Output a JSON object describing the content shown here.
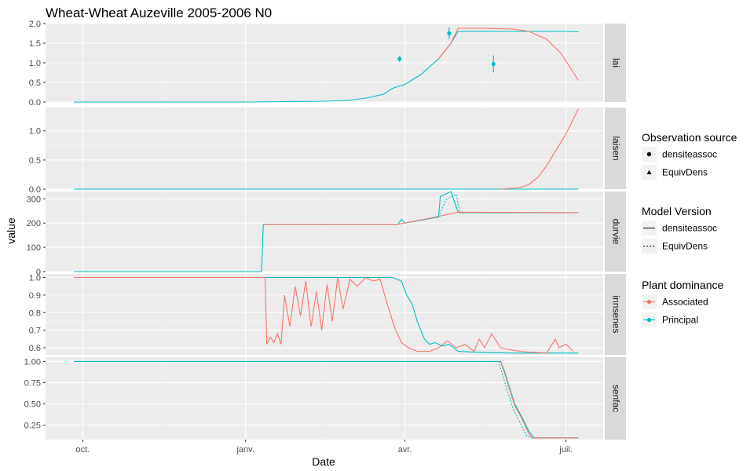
{
  "chart_data": {
    "type": "line",
    "title": "Wheat-Wheat Auzeville 2005-2006 N0",
    "xlabel": "Date",
    "ylabel": "value",
    "x_ticks": [
      "oct.",
      "janv.",
      "avr.",
      "juil."
    ],
    "grid": true,
    "legend_position": "right",
    "facets": [
      {
        "name": "lai",
        "ylim": [
          0,
          2.0
        ],
        "y_ticks": [
          0,
          0.5,
          1,
          1.5,
          2
        ],
        "y_tick_labels": [
          "0.0",
          "0.5",
          "1.0",
          "1.5",
          "2.0"
        ],
        "series": [
          {
            "name": "Principal",
            "version": "densiteassoc",
            "x": [
              "2005-09-26",
              "2006-01-01",
              "2006-02-15",
              "2006-03-01",
              "2006-03-10",
              "2006-03-20",
              "2006-03-25",
              "2006-04-01",
              "2006-04-10",
              "2006-04-20",
              "2006-04-27",
              "2006-05-01",
              "2006-05-15",
              "2006-06-01",
              "2006-06-15",
              "2006-07-01",
              "2006-07-08"
            ],
            "y": [
              0.0,
              0.0,
              0.02,
              0.05,
              0.1,
              0.2,
              0.35,
              0.45,
              0.7,
              1.1,
              1.5,
              1.8,
              1.8,
              1.8,
              1.8,
              1.8,
              1.79
            ]
          },
          {
            "name": "Associated",
            "version": "densiteassoc",
            "x": [
              "2006-04-20",
              "2006-04-27",
              "2006-05-01",
              "2006-05-15",
              "2006-06-01",
              "2006-06-10",
              "2006-06-20",
              "2006-06-28",
              "2006-07-03",
              "2006-07-08"
            ],
            "y": [
              1.1,
              1.5,
              1.88,
              1.88,
              1.86,
              1.8,
              1.6,
              1.25,
              0.9,
              0.55
            ]
          }
        ],
        "points": [
          {
            "name": "Principal",
            "source": "densiteassoc",
            "x": [
              "2006-03-29",
              "2006-04-26",
              "2006-05-21"
            ],
            "y": [
              1.1,
              1.75,
              0.97
            ],
            "err": [
              0.08,
              0.15,
              0.22
            ]
          }
        ]
      },
      {
        "name": "laisen",
        "ylim": [
          0,
          1.4
        ],
        "y_ticks": [
          0,
          0.5,
          1
        ],
        "y_tick_labels": [
          "0.0",
          "0.5",
          "1.0"
        ],
        "series": [
          {
            "name": "Principal",
            "version": "densiteassoc",
            "x": [
              "2005-09-26",
              "2006-07-08"
            ],
            "y": [
              0.0,
              0.0
            ]
          },
          {
            "name": "Associated",
            "version": "densiteassoc",
            "x": [
              "2006-05-25",
              "2006-06-05",
              "2006-06-10",
              "2006-06-15",
              "2006-06-20",
              "2006-06-25",
              "2006-07-01",
              "2006-07-08"
            ],
            "y": [
              0.0,
              0.03,
              0.08,
              0.2,
              0.4,
              0.65,
              0.95,
              1.38
            ]
          }
        ]
      },
      {
        "name": "durvie",
        "ylim": [
          0,
          330
        ],
        "y_ticks": [
          0,
          100,
          200,
          300
        ],
        "y_tick_labels": [
          "0",
          "100",
          "200",
          "300"
        ],
        "series": [
          {
            "name": "Principal",
            "version": "densiteassoc",
            "x": [
              "2005-09-26",
              "2006-01-10",
              "2006-01-11",
              "2006-03-28",
              "2006-03-30",
              "2006-04-01",
              "2006-04-20",
              "2006-04-21",
              "2006-04-27",
              "2006-05-01",
              "2006-05-02",
              "2006-07-08"
            ],
            "y": [
              0,
              0,
              195,
              195,
              215,
              200,
              225,
              310,
              330,
              245,
              243,
              243
            ]
          },
          {
            "name": "Associated",
            "version": "densiteassoc",
            "x": [
              "2006-01-11",
              "2006-03-28",
              "2006-04-15",
              "2006-05-01",
              "2006-07-08"
            ],
            "y": [
              195,
              195,
              220,
              245,
              243
            ]
          },
          {
            "name": "Principal",
            "version": "EquivDens",
            "x": [
              "2006-04-20",
              "2006-04-24",
              "2006-04-30",
              "2006-05-02"
            ],
            "y": [
              225,
              295,
              320,
              245
            ]
          }
        ]
      },
      {
        "name": "innsenes",
        "ylim": [
          0.56,
          1.02
        ],
        "y_ticks": [
          0.6,
          0.7,
          0.8,
          0.9,
          1.0
        ],
        "y_tick_labels": [
          "0.6",
          "0.7",
          "0.8",
          "0.9",
          "1.0"
        ],
        "series": [
          {
            "name": "Principal",
            "version": "densiteassoc",
            "x": [
              "2005-09-26",
              "2006-03-25",
              "2006-03-30",
              "2006-04-02",
              "2006-04-05",
              "2006-04-08",
              "2006-04-10",
              "2006-04-12",
              "2006-04-15",
              "2006-04-18",
              "2006-04-22",
              "2006-04-26",
              "2006-05-01",
              "2006-05-10",
              "2006-06-01",
              "2006-07-08"
            ],
            "y": [
              1.0,
              1.0,
              0.98,
              0.9,
              0.85,
              0.75,
              0.7,
              0.65,
              0.62,
              0.63,
              0.61,
              0.62,
              0.58,
              0.575,
              0.57,
              0.57
            ]
          },
          {
            "name": "Associated",
            "version": "densiteassoc",
            "x": [
              "2005-09-26",
              "2006-01-12",
              "2006-01-13",
              "2006-01-15",
              "2006-01-17",
              "2006-01-19",
              "2006-01-21",
              "2006-01-23",
              "2006-01-26",
              "2006-01-29",
              "2006-02-01",
              "2006-02-04",
              "2006-02-07",
              "2006-02-10",
              "2006-02-13",
              "2006-02-16",
              "2006-02-19",
              "2006-02-22",
              "2006-02-25",
              "2006-03-01",
              "2006-03-05",
              "2006-03-10",
              "2006-03-14",
              "2006-03-18",
              "2006-03-22",
              "2006-03-26",
              "2006-03-30",
              "2006-04-03",
              "2006-04-08",
              "2006-04-15",
              "2006-04-20",
              "2006-04-25",
              "2006-04-30",
              "2006-05-05",
              "2006-05-10",
              "2006-05-13",
              "2006-05-16",
              "2006-05-20",
              "2006-05-25",
              "2006-05-30",
              "2006-06-05",
              "2006-06-10",
              "2006-06-20",
              "2006-06-25",
              "2006-06-27",
              "2006-07-01",
              "2006-07-05"
            ],
            "y": [
              1.0,
              1.0,
              0.62,
              0.66,
              0.63,
              0.68,
              0.62,
              0.9,
              0.72,
              0.95,
              0.78,
              0.98,
              0.72,
              0.92,
              0.7,
              0.96,
              0.75,
              1.0,
              0.82,
              0.99,
              0.95,
              1.0,
              0.98,
              0.99,
              0.85,
              0.72,
              0.63,
              0.6,
              0.58,
              0.58,
              0.6,
              0.64,
              0.6,
              0.62,
              0.58,
              0.65,
              0.6,
              0.68,
              0.6,
              0.59,
              0.58,
              0.575,
              0.57,
              0.65,
              0.6,
              0.62,
              0.58
            ]
          }
        ]
      },
      {
        "name": "senfac",
        "ylim": [
          0.08,
          1.05
        ],
        "y_ticks": [
          0.25,
          0.5,
          0.75,
          1.0
        ],
        "y_tick_labels": [
          "0.25",
          "0.50",
          "0.75",
          "1.00"
        ],
        "series": [
          {
            "name": "Principal",
            "version": "densiteassoc",
            "x": [
              "2005-09-26",
              "2006-05-25",
              "2006-05-27",
              "2006-05-30",
              "2006-06-02",
              "2006-06-06",
              "2006-06-10",
              "2006-06-13",
              "2006-07-08"
            ],
            "y": [
              1.0,
              1.0,
              0.9,
              0.7,
              0.5,
              0.35,
              0.18,
              0.1,
              0.1
            ]
          },
          {
            "name": "Associated",
            "version": "densiteassoc",
            "x": [
              "2006-05-25",
              "2006-05-27",
              "2006-05-30",
              "2006-06-02",
              "2006-06-06",
              "2006-06-10",
              "2006-06-12",
              "2006-07-08"
            ],
            "y": [
              1.0,
              0.88,
              0.68,
              0.48,
              0.33,
              0.15,
              0.1,
              0.1
            ]
          },
          {
            "name": "Principal",
            "version": "EquivDens",
            "x": [
              "2006-05-24",
              "2006-05-26",
              "2006-05-29",
              "2006-06-01",
              "2006-06-05",
              "2006-06-09",
              "2006-06-12"
            ],
            "y": [
              1.0,
              0.85,
              0.65,
              0.45,
              0.28,
              0.12,
              0.1
            ]
          }
        ]
      }
    ],
    "legends": [
      {
        "title": "Observation source",
        "items": [
          {
            "label": "densiteassoc",
            "symbol": "circle"
          },
          {
            "label": "EquivDens",
            "symbol": "triangle"
          }
        ]
      },
      {
        "title": "Model Version",
        "items": [
          {
            "label": "densiteassoc",
            "linetype": "solid"
          },
          {
            "label": "EquivDens",
            "linetype": "dotted"
          }
        ]
      },
      {
        "title": "Plant dominance",
        "items": [
          {
            "label": "Associated",
            "color": "#F8766D"
          },
          {
            "label": "Principal",
            "color": "#00BFC4"
          }
        ]
      }
    ],
    "colors": {
      "Associated": "#F8766D",
      "Principal": "#00BFC4"
    }
  }
}
